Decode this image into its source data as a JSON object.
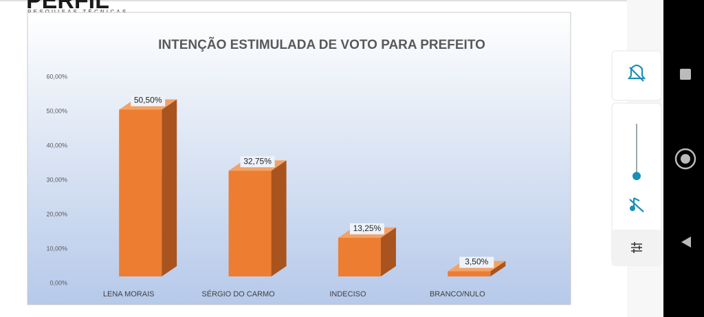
{
  "header": {
    "logo": "PERFIL",
    "tagline": "PESQUISAS TÉCNICAS"
  },
  "chart_data": {
    "type": "bar3d",
    "title": "INTENÇÃO ESTIMULADA DE VOTO PARA PREFEITO",
    "categories": [
      "LENA MORAIS",
      "SÉRGIO DO CARMO",
      "INDECISO",
      "BRANCO/NULO"
    ],
    "values": [
      50.5,
      32.75,
      13.25,
      3.5
    ],
    "value_labels": [
      "50,50%",
      "32,75%",
      "13,25%",
      "3,50%"
    ],
    "color": "#ed7d31",
    "ylim": [
      0,
      60
    ],
    "yticks": [
      {
        "value": 0,
        "label": "0,00%"
      },
      {
        "value": 10,
        "label": "10,00%"
      },
      {
        "value": 20,
        "label": "20,00%"
      },
      {
        "value": 30,
        "label": "30,00%"
      },
      {
        "value": 40,
        "label": "40,00%"
      },
      {
        "value": 50,
        "label": "50,00%"
      },
      {
        "value": 60,
        "label": "60,00%"
      }
    ]
  }
}
